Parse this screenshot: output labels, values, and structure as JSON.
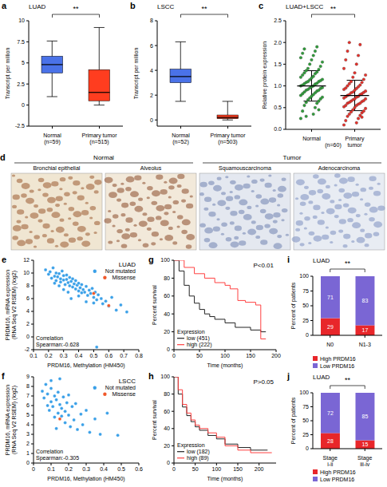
{
  "chart_data": [
    {
      "panel": "a",
      "type": "box",
      "title": "LUAD",
      "ylabel": "Transcript per million",
      "categories": [
        "Normal\n(n=59)",
        "Primary tumor\n(n=515)"
      ],
      "colors": [
        "#4a72e8",
        "#ff3d1f"
      ],
      "boxes": [
        {
          "min": 1.0,
          "q1": 3.8,
          "median": 4.8,
          "q3": 5.8,
          "max": 7.6
        },
        {
          "min": 0.0,
          "q1": 0.5,
          "median": 1.5,
          "q3": 4.2,
          "max": 9.2
        }
      ],
      "ylim": [
        -2.5,
        10
      ],
      "yticks": [
        -2.5,
        0,
        2.5,
        5,
        7.5,
        10
      ],
      "annotation": "**"
    },
    {
      "panel": "b",
      "type": "box",
      "title": "LSCC",
      "ylabel": "Transcript per million",
      "categories": [
        "Normal\n(n=52)",
        "Primary tumor\n(n=503)"
      ],
      "colors": [
        "#4a72e8",
        "#ff3d1f"
      ],
      "boxes": [
        {
          "min": 1.5,
          "q1": 3.0,
          "median": 3.5,
          "q3": 4.1,
          "max": 6.3
        },
        {
          "min": 0.0,
          "q1": 0.1,
          "median": 0.2,
          "q3": 0.4,
          "max": 1.5
        }
      ],
      "ylim": [
        -0.5,
        8
      ],
      "yticks": [
        0,
        2,
        4,
        6,
        8
      ],
      "annotation": "**"
    },
    {
      "panel": "c",
      "type": "dot",
      "title": "LUAD+LSCC",
      "ylabel": "Relative protein expression",
      "categories": [
        "Normal",
        "Primary tumor"
      ],
      "xlabel": "(n=60)",
      "colors": [
        "#2f9e3a",
        "#e8302a"
      ],
      "groups": [
        {
          "values": [
            0.25,
            0.35,
            0.42,
            0.5,
            0.55,
            0.6,
            0.62,
            0.65,
            0.68,
            0.7,
            0.72,
            0.74,
            0.76,
            0.78,
            0.8,
            0.82,
            0.84,
            0.86,
            0.88,
            0.9,
            0.9,
            0.92,
            0.94,
            0.95,
            0.96,
            0.98,
            1.0,
            1.0,
            1.02,
            1.04,
            1.05,
            1.06,
            1.08,
            1.1,
            1.1,
            1.12,
            1.14,
            1.15,
            1.18,
            1.2,
            1.22,
            1.25,
            1.28,
            1.3,
            1.32,
            1.35,
            1.38,
            1.4,
            1.45,
            1.5,
            1.55,
            1.6,
            1.65,
            1.7,
            1.75,
            1.8,
            1.85,
            1.9,
            0.3,
            0.45
          ],
          "mean": 1.0,
          "sd": 0.35
        },
        {
          "values": [
            0.1,
            0.15,
            0.2,
            0.25,
            0.3,
            0.32,
            0.35,
            0.38,
            0.4,
            0.42,
            0.45,
            0.48,
            0.5,
            0.52,
            0.55,
            0.55,
            0.58,
            0.6,
            0.6,
            0.62,
            0.64,
            0.65,
            0.66,
            0.68,
            0.7,
            0.7,
            0.72,
            0.74,
            0.75,
            0.76,
            0.78,
            0.8,
            0.8,
            0.82,
            0.84,
            0.85,
            0.86,
            0.88,
            0.9,
            0.92,
            0.94,
            0.95,
            0.98,
            1.0,
            1.02,
            1.05,
            1.08,
            1.1,
            1.15,
            1.2,
            1.25,
            1.3,
            1.4,
            1.5,
            1.6,
            1.7,
            1.8,
            1.95,
            2.0,
            0.28
          ],
          "mean": 0.78,
          "sd": 0.35
        }
      ],
      "ylim": [
        0,
        2.5
      ],
      "yticks": [
        {
          "value": 0,
          "label": "0.0"
        },
        {
          "value": 0.5,
          "label": "0.5"
        },
        {
          "value": 1,
          "label": "1.0"
        },
        {
          "value": 1.5,
          "label": "1.5"
        },
        {
          "value": 2,
          "label": "2.0"
        },
        {
          "value": 2.5,
          "label": "2.5"
        }
      ],
      "annotation": "**"
    },
    {
      "panel": "d",
      "type": "image",
      "groups": [
        {
          "label": "Normal",
          "images": [
            "Bronchial epithelial",
            "Alveolus"
          ]
        },
        {
          "label": "Tumor",
          "images": [
            "Squamouscarcinoma",
            "Adenocarcinoma"
          ]
        }
      ]
    },
    {
      "panel": "e",
      "type": "scatter",
      "title": "LUAD",
      "xlabel": "PRDM16, Methylation (HM450)",
      "ylabel": "PRDM16, mRNA expression\n(RNA Seq V2 RSEM) (log2)",
      "legend": "upper right",
      "annotation": [
        "Correlation",
        "Spearman:-0.628"
      ],
      "xlim": [
        0.1,
        0.8
      ],
      "xticks": [
        0.1,
        0.2,
        0.3,
        0.4,
        0.5,
        0.6,
        0.7,
        0.8
      ],
      "ylim": [
        -2,
        12
      ],
      "yticks": [
        -2,
        0,
        2,
        4,
        6,
        8,
        10,
        12
      ],
      "series": [
        {
          "name": "Not mutated",
          "color": "#3aa0e8",
          "x": [
            0.18,
            0.2,
            0.21,
            0.22,
            0.23,
            0.24,
            0.25,
            0.25,
            0.26,
            0.27,
            0.28,
            0.28,
            0.29,
            0.3,
            0.3,
            0.31,
            0.32,
            0.32,
            0.33,
            0.34,
            0.34,
            0.35,
            0.36,
            0.36,
            0.37,
            0.38,
            0.38,
            0.39,
            0.4,
            0.4,
            0.41,
            0.42,
            0.42,
            0.43,
            0.44,
            0.45,
            0.46,
            0.47,
            0.48,
            0.49,
            0.5,
            0.51,
            0.52,
            0.53,
            0.55,
            0.56,
            0.58,
            0.6,
            0.62,
            0.65,
            0.68,
            0.72,
            0.35,
            0.3,
            0.45,
            0.27,
            0.4,
            0.5,
            0.33,
            0.24,
            0.52
          ],
          "values": [
            10.5,
            9.8,
            10.2,
            9.2,
            10.8,
            9.5,
            8.8,
            10.0,
            9.4,
            9.9,
            8.6,
            9.1,
            10.3,
            8.9,
            9.6,
            8.2,
            9.0,
            9.7,
            8.5,
            8.0,
            9.3,
            8.7,
            7.8,
            9.1,
            8.3,
            7.5,
            8.8,
            8.1,
            7.2,
            8.4,
            7.7,
            6.9,
            8.2,
            7.4,
            7.0,
            7.9,
            6.5,
            7.3,
            6.8,
            7.6,
            6.2,
            7.0,
            5.8,
            6.6,
            6.0,
            5.2,
            5.6,
            4.8,
            6.2,
            4.2,
            5.0,
            3.9,
            6.0,
            7.4,
            5.5,
            8.0,
            6.4,
            5.3,
            7.0,
            8.4,
            -1.6
          ]
        },
        {
          "name": "Missense",
          "color": "#f0582a",
          "x": [
            0.5,
            0.6
          ],
          "values": [
            6.8,
            4.9
          ]
        }
      ]
    },
    {
      "panel": "f",
      "type": "scatter",
      "title": "LSCC",
      "xlabel": "PRDM16, Methylation (HM450)",
      "ylabel": "PRDM16, mRNA expression\n(RNA Seq V2 RSEM) (log2)",
      "legend": "upper right",
      "annotation": [
        "Correlation",
        "Spearman:-0.305"
      ],
      "xlim": [
        0,
        0.6
      ],
      "xticks": [
        0,
        0.1,
        0.2,
        0.3,
        0.4,
        0.5,
        0.6
      ],
      "ylim": [
        0,
        9
      ],
      "yticks": [
        0,
        1,
        2,
        3,
        4,
        5,
        6,
        7,
        8,
        9
      ],
      "series": [
        {
          "name": "Not mutated",
          "color": "#3aa0e8",
          "x": [
            0.05,
            0.06,
            0.07,
            0.08,
            0.08,
            0.09,
            0.1,
            0.1,
            0.11,
            0.12,
            0.12,
            0.13,
            0.14,
            0.14,
            0.15,
            0.16,
            0.16,
            0.17,
            0.18,
            0.18,
            0.19,
            0.2,
            0.21,
            0.22,
            0.23,
            0.24,
            0.25,
            0.27,
            0.28,
            0.3,
            0.32,
            0.35,
            0.38,
            0.42,
            0.48,
            0.52,
            0.1,
            0.13,
            0.2,
            0.15
          ],
          "values": [
            7.5,
            6.8,
            8.2,
            6.0,
            7.2,
            5.5,
            7.8,
            6.4,
            5.9,
            7.0,
            4.8,
            6.6,
            5.2,
            7.4,
            6.1,
            4.9,
            5.7,
            6.9,
            4.2,
            5.4,
            6.3,
            5.0,
            3.8,
            5.9,
            4.5,
            6.2,
            3.5,
            5.1,
            4.0,
            5.5,
            3.2,
            4.6,
            3.0,
            5.2,
            2.9,
            6.9,
            8.6,
            3.6,
            7.1,
            8.8
          ]
        },
        {
          "name": "Missense",
          "color": "#f0582a",
          "x": [
            0.15
          ],
          "values": [
            4.6
          ]
        }
      ]
    },
    {
      "panel": "g",
      "type": "line",
      "line_style": "step",
      "title": "LUAD",
      "xlabel": "Time (months)",
      "ylabel": "Percent survival",
      "annotation": "P<0.01",
      "legend": "lower left",
      "legend_title": "Expression",
      "xlim": [
        0,
        200
      ],
      "xticks": [
        0,
        50,
        100,
        150,
        200
      ],
      "ylim": [
        0,
        100
      ],
      "yticks": [
        0,
        20,
        40,
        60,
        80,
        100
      ],
      "series": [
        {
          "name": "low (451)",
          "color": "#222222",
          "x": [
            0,
            10,
            20,
            30,
            40,
            50,
            60,
            70,
            80,
            100,
            120,
            150,
            170,
            180
          ],
          "values": [
            100,
            88,
            72,
            60,
            52,
            45,
            40,
            37,
            34,
            30,
            25,
            22,
            20,
            20
          ]
        },
        {
          "name": "high (222)",
          "color": "#ff4040",
          "x": [
            0,
            20,
            40,
            60,
            80,
            100,
            110,
            125,
            140,
            160,
            170,
            180
          ],
          "values": [
            100,
            92,
            85,
            80,
            75,
            72,
            68,
            55,
            53,
            50,
            12,
            12
          ]
        }
      ]
    },
    {
      "panel": "h",
      "type": "line",
      "line_style": "step",
      "title": "LSCC",
      "xlabel": "Time (months)",
      "ylabel": "Percent survival",
      "annotation": "P>0.05",
      "legend": "lower left",
      "legend_title": "Expression",
      "xlim": [
        0,
        240
      ],
      "xticks": [
        0,
        50,
        100,
        150,
        200
      ],
      "ylim": [
        0,
        100
      ],
      "yticks": [
        0,
        20,
        40,
        60,
        80,
        100
      ],
      "series": [
        {
          "name": "low (182)",
          "color": "#222222",
          "x": [
            0,
            10,
            20,
            30,
            40,
            50,
            60,
            80,
            100,
            120,
            150,
            180,
            220
          ],
          "values": [
            100,
            80,
            65,
            55,
            48,
            42,
            38,
            32,
            28,
            22,
            18,
            15,
            15
          ]
        },
        {
          "name": "high (89)",
          "color": "#ff4040",
          "x": [
            0,
            10,
            20,
            30,
            40,
            50,
            60,
            80,
            100,
            120,
            150,
            180,
            230
          ],
          "values": [
            100,
            85,
            68,
            58,
            50,
            44,
            40,
            35,
            30,
            20,
            15,
            12,
            12
          ]
        }
      ]
    },
    {
      "panel": "i",
      "type": "bar",
      "stacked": true,
      "data_labels": true,
      "title": "LUAD",
      "ylabel": "Percent of patients",
      "annotation": "**",
      "legend": "bottom",
      "categories": [
        "N0",
        "N1-3"
      ],
      "ylim": [
        0,
        100
      ],
      "yticks": [
        0,
        25,
        50,
        75,
        100
      ],
      "series": [
        {
          "name": "High PRDM16",
          "color": "#e8262a",
          "values": [
            29,
            17
          ]
        },
        {
          "name": "Low PRDM16",
          "color": "#7a66d4",
          "values": [
            71,
            83
          ]
        }
      ]
    },
    {
      "panel": "j",
      "type": "bar",
      "stacked": true,
      "data_labels": true,
      "title": "LUAD",
      "ylabel": "Percent of patients",
      "annotation": "**",
      "legend": "bottom",
      "categories": [
        "Stage i-ii",
        "Stage iii-iv"
      ],
      "ylim": [
        0,
        100
      ],
      "yticks": [
        0,
        25,
        50,
        75,
        100
      ],
      "series": [
        {
          "name": "High PRDM16",
          "color": "#e8262a",
          "values": [
            28,
            15
          ]
        },
        {
          "name": "Low PRDM16",
          "color": "#7a66d4",
          "values": [
            72,
            85
          ]
        }
      ]
    }
  ]
}
